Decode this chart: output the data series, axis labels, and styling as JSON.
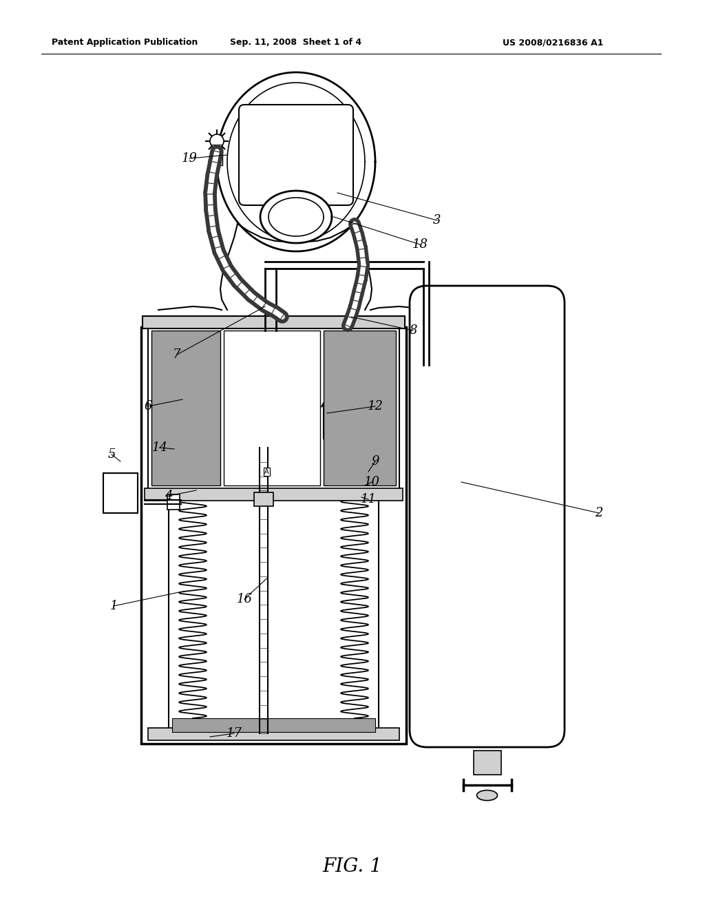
{
  "header_left": "Patent Application Publication",
  "header_mid": "Sep. 11, 2008  Sheet 1 of 4",
  "header_right": "US 2008/0216836 A1",
  "title": "FIG. 1",
  "bg": "#ffffff",
  "lc": "#000000",
  "gray": "#a0a0a0",
  "lgray": "#d0d0d0",
  "dgray": "#606060",
  "hatch_gray": "#888888"
}
